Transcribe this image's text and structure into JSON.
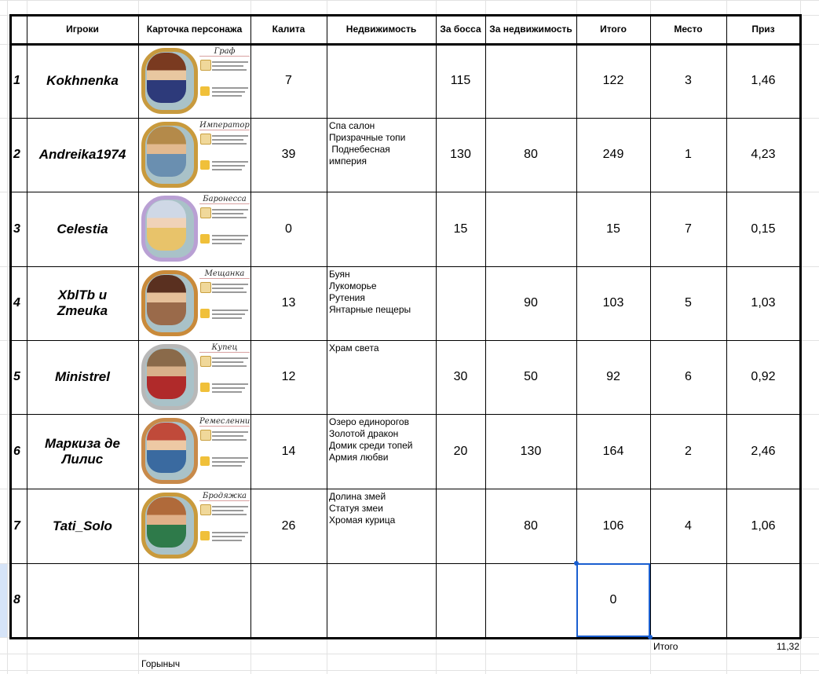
{
  "headers": {
    "players": "Игроки",
    "card": "Карточка персонажа",
    "kalita": "Калита",
    "property": "Недвижимость",
    "boss": "За босса",
    "for_property": "За недвижимость",
    "total": "Итого",
    "place": "Место",
    "prize": "Приз"
  },
  "rows": [
    {
      "n": "1",
      "player": "Kokhnenka",
      "card": "Граф",
      "kalita": "7",
      "property": [],
      "boss": "115",
      "for_property": "",
      "total": "122",
      "place": "3",
      "prize": "1,46"
    },
    {
      "n": "2",
      "player": "Andreika1974",
      "card": "Император",
      "kalita": "39",
      "property": [
        "Спа салон",
        "Призрачные топи",
        " Поднебесная",
        "империя"
      ],
      "boss": "130",
      "for_property": "80",
      "total": "249",
      "place": "1",
      "prize": "4,23"
    },
    {
      "n": "3",
      "player": "Celestia",
      "card": "Баронесса",
      "kalita": "0",
      "property": [],
      "boss": "15",
      "for_property": "",
      "total": "15",
      "place": "7",
      "prize": "0,15"
    },
    {
      "n": "4",
      "player": "XblTb и Zmeuka",
      "card": "Мещанка",
      "kalita": "13",
      "property": [
        "Буян",
        "Лукоморье",
        "Рутения",
        "Янтарные пещеры"
      ],
      "boss": "",
      "for_property": "90",
      "total": "103",
      "place": "5",
      "prize": "1,03"
    },
    {
      "n": "5",
      "player": "Ministrel",
      "card": "Купец",
      "kalita": "12",
      "property": [
        "Храм света"
      ],
      "boss": "30",
      "for_property": "50",
      "total": "92",
      "place": "6",
      "prize": "0,92"
    },
    {
      "n": "6",
      "player": "Маркиза де Лилис",
      "card": "Ремесленница",
      "kalita": "14",
      "property": [
        "Озеро единорогов",
        "Золотой дракон",
        "Домик среди топей",
        "Армия любви"
      ],
      "boss": "20",
      "for_property": "130",
      "total": "164",
      "place": "2",
      "prize": "2,46"
    },
    {
      "n": "7",
      "player": "Tati_Solo",
      "card": "Бродяжка",
      "kalita": "26",
      "property": [
        "Долина змей",
        "Статуя змеи",
        "Хромая курица"
      ],
      "boss": "",
      "for_property": "80",
      "total": "106",
      "place": "4",
      "prize": "1,06"
    },
    {
      "n": "8",
      "player": "",
      "card": "",
      "kalita": "",
      "property": [],
      "boss": "",
      "for_property": "",
      "total": "0",
      "place": "",
      "prize": ""
    }
  ],
  "footer": {
    "total_label": "Итого",
    "total_value": "11,32",
    "note": "Горыныч"
  },
  "colors": {
    "grid": "#e2e2e2",
    "selection": "#1a5fd0",
    "frame_gold": "#c99a3c"
  }
}
